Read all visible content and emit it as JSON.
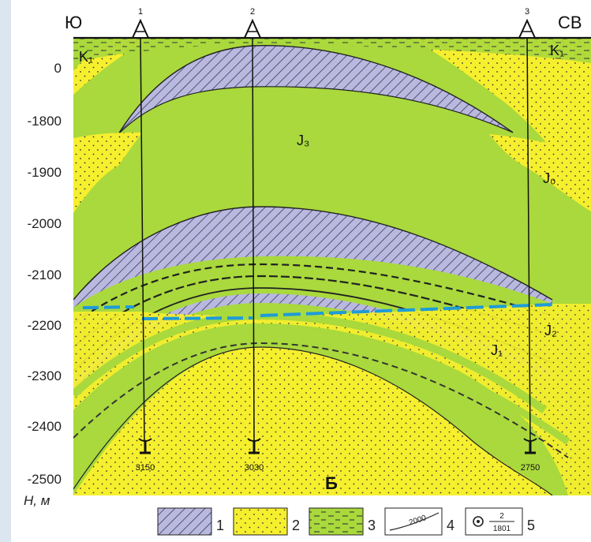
{
  "header": {
    "left_direction": "Ю",
    "right_direction": "СВ"
  },
  "wells": [
    {
      "number": "1",
      "depth_label": "3150"
    },
    {
      "number": "2",
      "depth_label": "3030"
    },
    {
      "number": "3",
      "depth_label": "2750"
    }
  ],
  "y_axis": {
    "ticks": [
      "0",
      "-1800",
      "-1900",
      "-2000",
      "-2100",
      "-2200",
      "-2300",
      "-2400",
      "-2500"
    ],
    "label": "H, м"
  },
  "formations": {
    "k1_left": "K₁",
    "k1_right": "K₁",
    "j3": "J₃",
    "j0": "J₀",
    "j2": "J₂",
    "j1": "J₁"
  },
  "panel_letter": "Б",
  "legend": [
    {
      "number": "1",
      "sample": ""
    },
    {
      "number": "2",
      "sample": ""
    },
    {
      "number": "3",
      "sample": ""
    },
    {
      "number": "4",
      "sample": "2000"
    },
    {
      "number": "5",
      "sample_top": "2",
      "sample_bottom": "1801"
    }
  ],
  "colors": {
    "green": "#a9d93c",
    "yellow": "#f6ef2e",
    "purple": "#b9b8df",
    "contact_line": "#1e9bd8",
    "ink": "#1a1a1a",
    "frame_bg": "#dbe6f1"
  }
}
